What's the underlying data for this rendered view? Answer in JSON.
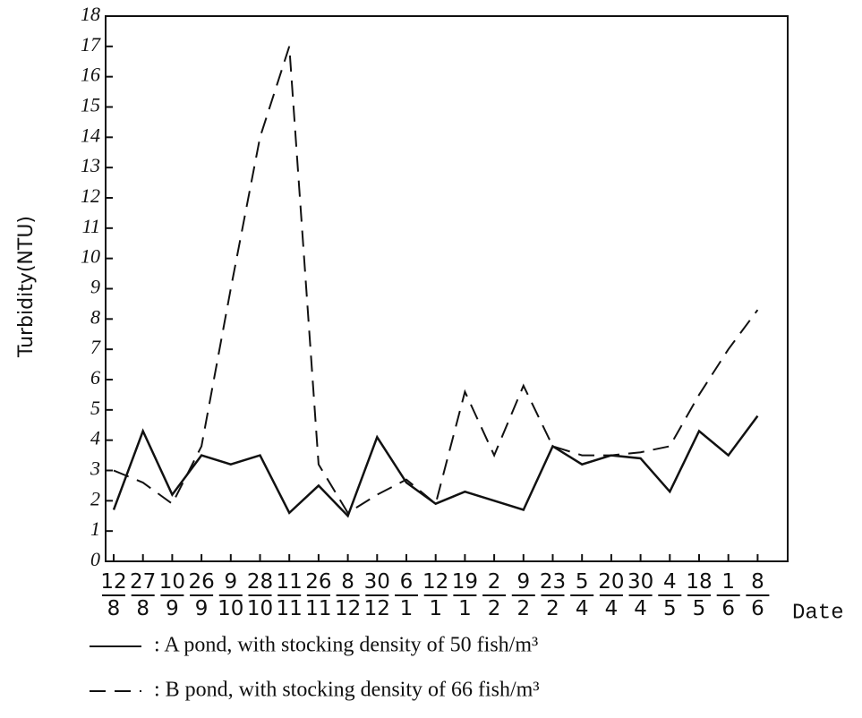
{
  "chart_data": {
    "type": "line",
    "y_label": "Turbidity(NTU)",
    "x_label": "Date",
    "categories": [
      "12/8",
      "27/8",
      "10/9",
      "26/9",
      "9/10",
      "28/10",
      "11/11",
      "26/11",
      "8/12",
      "30/12",
      "6/1",
      "12/1",
      "19/1",
      "2/2",
      "9/2",
      "23/2",
      "5/4",
      "20/4",
      "30/4",
      "4/5",
      "18/5",
      "1/6",
      "8/6"
    ],
    "series": [
      {
        "name": ": A pond, with stocking density of 50 fish/m³",
        "color": "#111111",
        "dash": "solid",
        "values": [
          1.7,
          4.3,
          2.2,
          3.5,
          3.2,
          3.5,
          1.6,
          2.5,
          1.5,
          4.1,
          2.6,
          1.9,
          2.3,
          2.0,
          1.7,
          3.8,
          3.2,
          3.5,
          3.4,
          2.3,
          4.3,
          3.5,
          4.8
        ]
      },
      {
        "name": ": B pond, with stocking density of 66 fish/m³",
        "color": "#111111",
        "dash": "dashed",
        "values": [
          3.0,
          2.6,
          1.9,
          3.8,
          9,
          14,
          17,
          3.2,
          1.6,
          2.2,
          2.7,
          1.9,
          5.6,
          3.5,
          5.8,
          3.8,
          3.5,
          3.5,
          3.6,
          3.8,
          5.5,
          7.0,
          8.3
        ]
      }
    ],
    "ylim": [
      0,
      18
    ],
    "yticks": [
      0,
      1,
      2,
      3,
      4,
      5,
      6,
      7,
      8,
      9,
      10,
      11,
      12,
      13,
      14,
      15,
      16,
      17,
      18
    ]
  }
}
